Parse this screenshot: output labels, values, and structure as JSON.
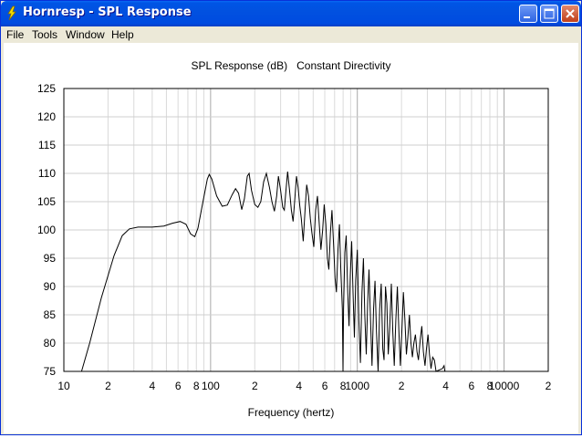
{
  "window": {
    "title": "Hornresp - SPL Response"
  },
  "menu": [
    "File",
    "Tools",
    "Window",
    "Help"
  ],
  "chart_data": {
    "type": "line",
    "title": "SPL Response (dB)   Constant Directivity",
    "xlabel": "Frequency (hertz)",
    "ylabel": "",
    "xscale": "log",
    "xlim": [
      10,
      20000
    ],
    "ylim": [
      75,
      125
    ],
    "grid": true,
    "x_tick_labels": [
      {
        "v": 10,
        "t": "10"
      },
      {
        "v": 20,
        "t": "2"
      },
      {
        "v": 40,
        "t": "4"
      },
      {
        "v": 60,
        "t": "6"
      },
      {
        "v": 80,
        "t": "8"
      },
      {
        "v": 100,
        "t": "100"
      },
      {
        "v": 200,
        "t": "2"
      },
      {
        "v": 400,
        "t": "4"
      },
      {
        "v": 600,
        "t": "6"
      },
      {
        "v": 800,
        "t": "8"
      },
      {
        "v": 1000,
        "t": "1000"
      },
      {
        "v": 2000,
        "t": "2"
      },
      {
        "v": 4000,
        "t": "4"
      },
      {
        "v": 6000,
        "t": "6"
      },
      {
        "v": 8000,
        "t": "8"
      },
      {
        "v": 10000,
        "t": "10000"
      },
      {
        "v": 20000,
        "t": "2"
      }
    ],
    "y_ticks": [
      75,
      80,
      85,
      90,
      95,
      100,
      105,
      110,
      115,
      120,
      125
    ],
    "series": [
      {
        "name": "",
        "color": "#000000",
        "points": [
          [
            13.2,
            75
          ],
          [
            15,
            80
          ],
          [
            18,
            88
          ],
          [
            22,
            95.5
          ],
          [
            25,
            99
          ],
          [
            28,
            100.2
          ],
          [
            32,
            100.5
          ],
          [
            40,
            100.5
          ],
          [
            48,
            100.7
          ],
          [
            55,
            101.2
          ],
          [
            62,
            101.5
          ],
          [
            68,
            101
          ],
          [
            73,
            99.3
          ],
          [
            78,
            98.8
          ],
          [
            82,
            100.3
          ],
          [
            88,
            104.5
          ],
          [
            95,
            109
          ],
          [
            98,
            109.8
          ],
          [
            102,
            109
          ],
          [
            110,
            106
          ],
          [
            120,
            104.2
          ],
          [
            130,
            104.4
          ],
          [
            140,
            106.2
          ],
          [
            148,
            107.3
          ],
          [
            155,
            106.5
          ],
          [
            163,
            103.6
          ],
          [
            170,
            105.5
          ],
          [
            178,
            109.5
          ],
          [
            183,
            110
          ],
          [
            190,
            107
          ],
          [
            200,
            104.5
          ],
          [
            210,
            104
          ],
          [
            220,
            105
          ],
          [
            230,
            108.5
          ],
          [
            240,
            110
          ],
          [
            252,
            107.5
          ],
          [
            262,
            105
          ],
          [
            272,
            103.3
          ],
          [
            282,
            106
          ],
          [
            290,
            109.5
          ],
          [
            300,
            107
          ],
          [
            310,
            104
          ],
          [
            318,
            103.5
          ],
          [
            325,
            106.5
          ],
          [
            335,
            110.3
          ],
          [
            345,
            107
          ],
          [
            355,
            103.5
          ],
          [
            365,
            101.5
          ],
          [
            375,
            105.5
          ],
          [
            385,
            109.5
          ],
          [
            395,
            107.5
          ],
          [
            405,
            104.3
          ],
          [
            415,
            102
          ],
          [
            428,
            98
          ],
          [
            440,
            103.5
          ],
          [
            452,
            108
          ],
          [
            465,
            106
          ],
          [
            478,
            102
          ],
          [
            490,
            99.5
          ],
          [
            505,
            97
          ],
          [
            520,
            103.5
          ],
          [
            535,
            106
          ],
          [
            550,
            101
          ],
          [
            565,
            96.5
          ],
          [
            580,
            100
          ],
          [
            595,
            104.5
          ],
          [
            610,
            101
          ],
          [
            625,
            95
          ],
          [
            640,
            93
          ],
          [
            655,
            99.5
          ],
          [
            672,
            103.5
          ],
          [
            690,
            97
          ],
          [
            705,
            91.5
          ],
          [
            720,
            89
          ],
          [
            738,
            96.5
          ],
          [
            755,
            101
          ],
          [
            772,
            93
          ],
          [
            790,
            86
          ],
          [
            798,
            75
          ],
          [
            805,
            86
          ],
          [
            822,
            96
          ],
          [
            840,
            99
          ],
          [
            860,
            89
          ],
          [
            878,
            83
          ],
          [
            895,
            92
          ],
          [
            915,
            98
          ],
          [
            935,
            89
          ],
          [
            955,
            81
          ],
          [
            975,
            91
          ],
          [
            1000,
            96.5
          ],
          [
            1025,
            84
          ],
          [
            1050,
            76.5
          ],
          [
            1075,
            89
          ],
          [
            1100,
            95
          ],
          [
            1125,
            85
          ],
          [
            1150,
            78
          ],
          [
            1175,
            87
          ],
          [
            1200,
            93
          ],
          [
            1230,
            84
          ],
          [
            1258,
            76
          ],
          [
            1290,
            86
          ],
          [
            1320,
            91
          ],
          [
            1350,
            82
          ],
          [
            1385,
            75
          ],
          [
            1420,
            86
          ],
          [
            1455,
            90.5
          ],
          [
            1490,
            79
          ],
          [
            1520,
            77
          ],
          [
            1555,
            90
          ],
          [
            1590,
            87
          ],
          [
            1625,
            78
          ],
          [
            1665,
            83
          ],
          [
            1705,
            90.5
          ],
          [
            1745,
            82
          ],
          [
            1785,
            76
          ],
          [
            1830,
            84
          ],
          [
            1875,
            90
          ],
          [
            1920,
            82
          ],
          [
            1965,
            76
          ],
          [
            2010,
            82
          ],
          [
            2060,
            89
          ],
          [
            2110,
            84
          ],
          [
            2160,
            78
          ],
          [
            2210,
            81
          ],
          [
            2265,
            85
          ],
          [
            2320,
            80
          ],
          [
            2375,
            77.5
          ],
          [
            2430,
            80
          ],
          [
            2490,
            81.5
          ],
          [
            2550,
            78.5
          ],
          [
            2610,
            77
          ],
          [
            2680,
            80.5
          ],
          [
            2750,
            83
          ],
          [
            2820,
            78.5
          ],
          [
            2890,
            76
          ],
          [
            2960,
            79
          ],
          [
            3030,
            81.5
          ],
          [
            3100,
            78
          ],
          [
            3180,
            75.5
          ],
          [
            3260,
            77.5
          ],
          [
            3350,
            77
          ],
          [
            3440,
            75
          ],
          [
            3800,
            75.5
          ],
          [
            3900,
            76
          ],
          [
            3950,
            75
          ]
        ]
      }
    ]
  }
}
